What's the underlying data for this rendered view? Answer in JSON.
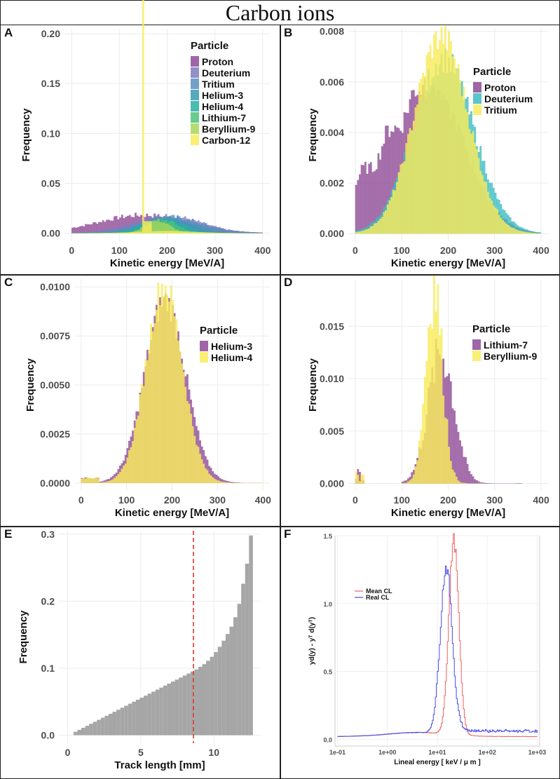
{
  "title": "Carbon ions",
  "chart_data": [
    {
      "id": "A",
      "type": "histogram",
      "xlabel": "Kinetic energy [MeV/A]",
      "ylabel": "Frequency",
      "xlim": [
        -15,
        415
      ],
      "ylim": [
        -0.008,
        0.205
      ],
      "xticks": [
        0,
        100,
        200,
        300,
        400
      ],
      "yticks": [
        0.0,
        0.05,
        0.1,
        0.15,
        0.2
      ],
      "ytick_labels": [
        "0.00",
        "0.05",
        "0.10",
        "0.15",
        "0.20"
      ],
      "legend_title": "Particle",
      "legend_position": "top-right",
      "series": [
        {
          "name": "Proton",
          "color": "#8e4a96",
          "peak": 200,
          "mean": 150,
          "sd": 95,
          "skew": 0
        },
        {
          "name": "Deuterium",
          "color": "#7b7ec0",
          "peak": 185,
          "mean": 200,
          "sd": 72,
          "skew": 0
        },
        {
          "name": "Tritium",
          "color": "#5b8fbf",
          "peak": 175,
          "mean": 205,
          "sd": 65,
          "skew": 0
        },
        {
          "name": "Helium-3",
          "color": "#3b9ab5",
          "peak": 185,
          "mean": 200,
          "sd": 50,
          "skew": 0
        },
        {
          "name": "Helium-4",
          "color": "#2aafa3",
          "peak": 175,
          "mean": 190,
          "sd": 42,
          "skew": 0
        },
        {
          "name": "Lithium-7",
          "color": "#4cc27c",
          "peak": 165,
          "mean": 190,
          "sd": 30,
          "skew": 0
        },
        {
          "name": "Beryllium-9",
          "color": "#a6d65b",
          "peak": 180,
          "mean": 180,
          "sd": 25,
          "skew": 0
        },
        {
          "name": "Carbon-12",
          "color": "#f8ec5d",
          "peak": 196,
          "mean": 150,
          "sd": 2,
          "skew": 0
        }
      ]
    },
    {
      "id": "B",
      "type": "histogram",
      "xlabel": "Kinetic energy [MeV/A]",
      "ylabel": "Frequency",
      "xlim": [
        -15,
        415
      ],
      "ylim": [
        -0.0003,
        0.0081
      ],
      "xticks": [
        0,
        100,
        200,
        300,
        400
      ],
      "yticks": [
        0.0,
        0.002,
        0.004,
        0.006,
        0.008
      ],
      "ytick_labels": [
        "0.000",
        "0.002",
        "0.004",
        "0.006",
        "0.008"
      ],
      "legend_title": "Particle",
      "legend_position": "top-right",
      "series": [
        {
          "name": "Proton",
          "color": "#8e4a96",
          "peak": 0.0059,
          "mean": 148,
          "sd": 95,
          "skew": 1
        },
        {
          "name": "Deuterium",
          "color": "#3cbcc2",
          "peak": 0.0069,
          "mean": 190,
          "sd": 65,
          "skew": 0
        },
        {
          "name": "Tritium",
          "color": "#f8ec5d",
          "peak": 0.0078,
          "mean": 185,
          "sd": 58,
          "skew": 0
        }
      ]
    },
    {
      "id": "C",
      "type": "histogram",
      "xlabel": "Kinetic energy [MeV/A]",
      "ylabel": "Frequency",
      "xlim": [
        -15,
        415
      ],
      "ylim": [
        -0.0004,
        0.0104
      ],
      "xticks": [
        0,
        100,
        200,
        300,
        400
      ],
      "yticks": [
        0.0,
        0.0025,
        0.005,
        0.0075,
        0.01
      ],
      "ytick_labels": [
        "0.0000",
        "0.0025",
        "0.0050",
        "0.0075",
        "0.0100"
      ],
      "legend_title": "Particle",
      "legend_position": "right",
      "series": [
        {
          "name": "Helium-3",
          "color": "#8e4a96",
          "peak": 0.0093,
          "mean": 185,
          "sd": 45,
          "skew": 0
        },
        {
          "name": "Helium-4",
          "color": "#f8ec5d",
          "peak": 0.0101,
          "mean": 183,
          "sd": 40,
          "skew": 0
        }
      ]
    },
    {
      "id": "D",
      "type": "histogram",
      "xlabel": "Kinetic energy [MeV/A]",
      "ylabel": "Frequency",
      "xlim": [
        -15,
        415
      ],
      "ylim": [
        -0.0007,
        0.0195
      ],
      "xticks": [
        0,
        100,
        200,
        300,
        400
      ],
      "yticks": [
        0.0,
        0.005,
        0.01,
        0.015
      ],
      "ytick_labels": [
        "0.000",
        "0.005",
        "0.010",
        "0.015"
      ],
      "legend_title": "Particle",
      "legend_position": "right",
      "series": [
        {
          "name": "Lithium-7",
          "color": "#8e4a96",
          "peak": 0.0125,
          "mean": 185,
          "sd": 28,
          "skew": 0
        },
        {
          "name": "Beryllium-9",
          "color": "#f8ec5d",
          "peak": 0.0188,
          "mean": 170,
          "sd": 18,
          "skew": 0
        }
      ]
    },
    {
      "id": "E",
      "type": "bar",
      "xlabel": "Track length [mm]",
      "ylabel": "Frequency",
      "xlim": [
        -0.6,
        13.2
      ],
      "ylim": [
        -0.012,
        0.305
      ],
      "xticks": [
        0,
        5,
        10
      ],
      "yticks": [
        0.0,
        0.1,
        0.2,
        0.3
      ],
      "ytick_labels": [
        "0.0",
        "0.1",
        "0.2",
        "0.3"
      ],
      "bin_width": 0.3333,
      "bin_start": 0.4,
      "color": "#a6a6a6",
      "values": [
        0.005,
        0.008,
        0.011,
        0.014,
        0.017,
        0.02,
        0.023,
        0.026,
        0.029,
        0.032,
        0.035,
        0.038,
        0.041,
        0.044,
        0.047,
        0.05,
        0.053,
        0.056,
        0.059,
        0.062,
        0.065,
        0.068,
        0.071,
        0.074,
        0.077,
        0.08,
        0.083,
        0.086,
        0.089,
        0.092,
        0.095,
        0.098,
        0.102,
        0.106,
        0.111,
        0.117,
        0.124,
        0.132,
        0.141,
        0.151,
        0.162,
        0.176,
        0.196,
        0.226,
        0.256,
        0.298
      ],
      "vline": 8.6,
      "vline_color": "#e0342a"
    },
    {
      "id": "F",
      "type": "line",
      "xscale": "log",
      "xlabel": "Lineal energy [ keV / μ m ]",
      "ylabel": "yd(y) - yᵀ d(yᵀ)",
      "xlim_log10": [
        -1.05,
        3.05
      ],
      "ylim": [
        -0.05,
        1.5
      ],
      "xticks_log10": [
        -1,
        0,
        1,
        2,
        3
      ],
      "xtick_labels": [
        "1e-01",
        "1e+00",
        "1e+01",
        "1e+02",
        "1e+03"
      ],
      "yticks": [
        0.0,
        0.5,
        1.0,
        1.5
      ],
      "ytick_labels": [
        "0.0",
        "0.5",
        "1.0",
        "1.5"
      ],
      "legend_position": "top-left",
      "series": [
        {
          "name": "Mean CL",
          "color": "#f06060",
          "peak": 1.43,
          "mean": 1.32,
          "sd": 0.1,
          "skew": 0
        },
        {
          "name": "Real CL",
          "color": "#4a4ae8",
          "peak": 1.23,
          "mean": 1.17,
          "sd": 0.12,
          "skew": 0
        }
      ]
    }
  ]
}
